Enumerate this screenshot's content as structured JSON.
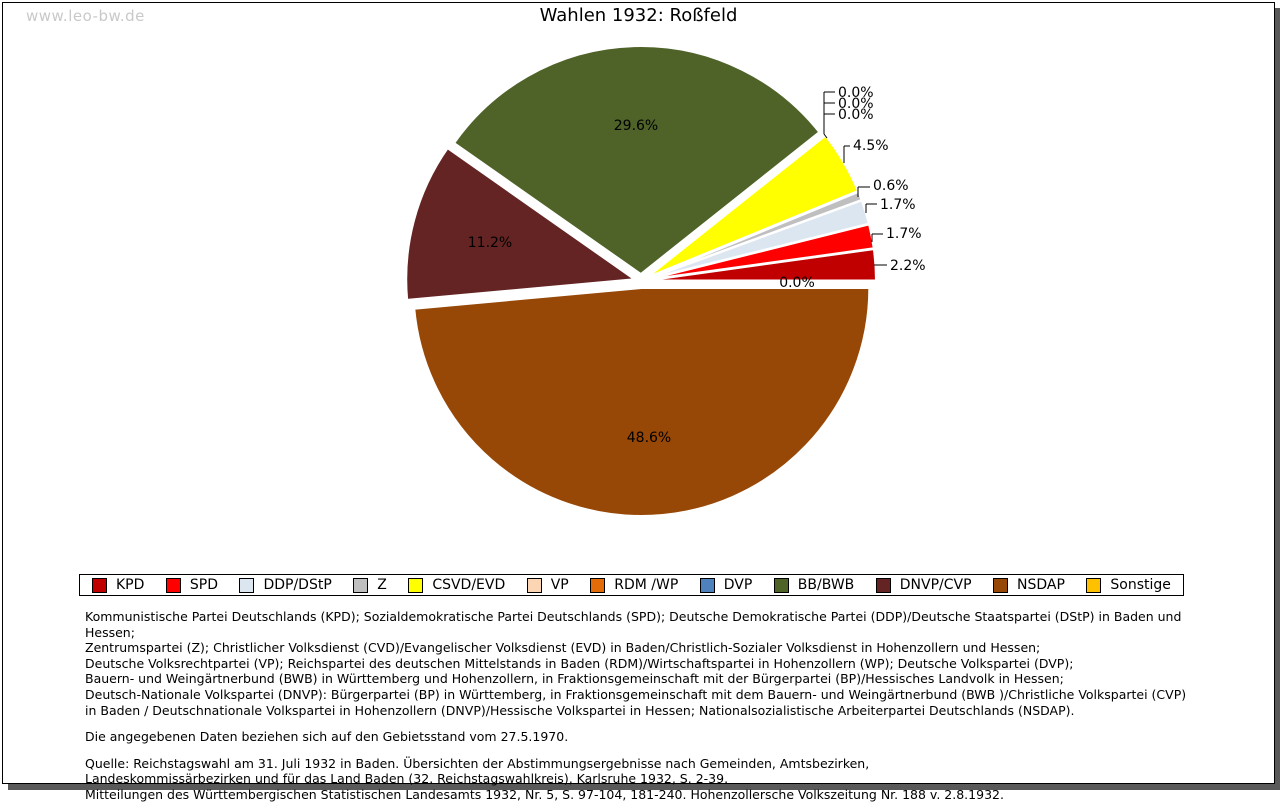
{
  "watermark": "www.leo-bw.de",
  "title": "Wahlen 1932: Roßfeld",
  "chart_data": {
    "type": "pie",
    "title": "Wahlen 1932: Roßfeld",
    "unit": "%",
    "start_angle_deg": 0,
    "direction": "counterclockwise",
    "legend_position": "bottom",
    "slices": [
      {
        "name": "KPD",
        "value": 2.2,
        "label": "2.2%",
        "color": "#C00000"
      },
      {
        "name": "SPD",
        "value": 1.7,
        "label": "1.7%",
        "color": "#FF0000"
      },
      {
        "name": "DDP/DStP",
        "value": 1.7,
        "label": "1.7%",
        "color": "#DCE6F1"
      },
      {
        "name": "Z",
        "value": 0.6,
        "label": "0.6%",
        "color": "#BFBFBF"
      },
      {
        "name": "CSVD/EVD",
        "value": 4.5,
        "label": "4.5%",
        "color": "#FFFF00"
      },
      {
        "name": "VP",
        "value": 0.0,
        "label": "0.0%",
        "color": "#FCD5B4"
      },
      {
        "name": "RDM /WP",
        "value": 0.0,
        "label": "0.0%",
        "color": "#E36C09"
      },
      {
        "name": "DVP",
        "value": 0.0,
        "label": "0.0%",
        "color": "#4F81BD"
      },
      {
        "name": "BB/BWB",
        "value": 29.6,
        "label": "29.6%",
        "color": "#4F6228"
      },
      {
        "name": "DNVP/CVP",
        "value": 11.2,
        "label": "11.2%",
        "color": "#632423"
      },
      {
        "name": "NSDAP",
        "value": 48.6,
        "label": "48.6%",
        "color": "#974706"
      },
      {
        "name": "Sonstige",
        "value": 0.0,
        "label": "0.0%",
        "color": "#FFC000"
      }
    ]
  },
  "footer": {
    "party_lines": [
      "Kommunistische Partei Deutschlands (KPD); Sozialdemokratische Partei Deutschlands (SPD); Deutsche Demokratische Partei (DDP)/Deutsche Staatspartei (DStP) in Baden und Hessen;",
      "Zentrumspartei (Z); Christlicher Volksdienst (CVD)/Evangelischer Volksdienst (EVD) in Baden/Christlich-Sozialer Volksdienst in Hohenzollern und Hessen;",
      "Deutsche Volksrechtpartei (VP); Reichspartei des deutschen Mittelstands in Baden (RDM)/Wirtschaftspartei in Hohenzollern (WP); Deutsche Volkspartei (DVP);",
      "Bauern- und Weingärtnerbund (BWB) in Württemberg und Hohenzollern, in Fraktionsgemeinschaft mit der Bürgerpartei (BP)/Hessisches Landvolk in Hessen;",
      "Deutsch-Nationale Volkspartei (DNVP): Bürgerpartei (BP) in Württemberg, in Fraktionsgemeinschaft mit dem Bauern- und Weingärtnerbund (BWB )/Christliche Volkspartei (CVP)",
      "in Baden / Deutschnationale Volkspartei in Hohenzollern (DNVP)/Hessische Volkspartei in Hessen; Nationalsozialistische Arbeiterpartei Deutschlands (NSDAP)."
    ],
    "note": "Die angegebenen Daten beziehen sich auf den Gebietsstand vom 27.5.1970.",
    "source_lines": [
      "Quelle: Reichstagswahl am 31. Juli 1932 in Baden. Übersichten der Abstimmungsergebnisse nach Gemeinden, Amtsbezirken,",
      "Landeskommissärbezirken und für das Land Baden (32. Reichstagswahlkreis), Karlsruhe 1932, S. 2-39.",
      "Mitteilungen des Württembergischen Statistischen Landesamts 1932, Nr. 5, S. 97-104, 181-240. Hohenzollersche Volkszeitung Nr. 188 v. 2.8.1932."
    ]
  }
}
